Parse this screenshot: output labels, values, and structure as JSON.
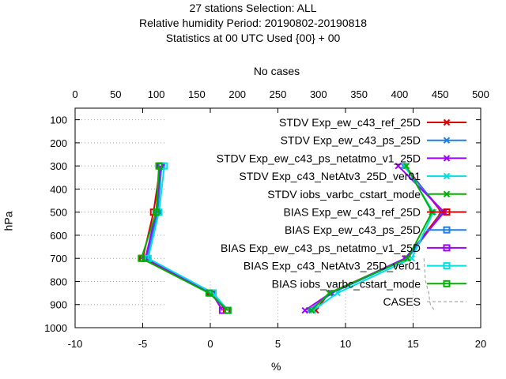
{
  "title_lines": [
    "27 stations Selection: ALL",
    "Relative humidity  Period: 20190802-20190818",
    "Statistics at 00 UTC  Used {00} + 00"
  ],
  "chart_data": {
    "type": "line",
    "title": "27 stations Selection: ALL / Relative humidity  Period: 20190802-20190818 / Statistics at 00 UTC  Used {00} + 00",
    "xlabel": "%",
    "ylabel": "hPa",
    "x2label": "No cases",
    "xlim": [
      -10,
      20
    ],
    "ylim": [
      1000,
      50
    ],
    "x2lim": [
      0,
      500
    ],
    "xticks": [
      "-10",
      "-5",
      "0",
      "5",
      "10",
      "15",
      "20"
    ],
    "yticks": [
      "100",
      "200",
      "300",
      "400",
      "500",
      "600",
      "700",
      "800",
      "900",
      "1000"
    ],
    "x2ticks": [
      "0",
      "50",
      "100",
      "150",
      "200",
      "250",
      "300",
      "350",
      "400",
      "450",
      "500"
    ],
    "grid": true,
    "legend_position": "top-right",
    "series": [
      {
        "name": "STDV Exp_ew_c43_ref_25D",
        "color": "#dd0000",
        "marker": "x",
        "x": [
          14.4,
          17.1,
          14.5,
          8.8,
          7.8
        ],
        "y": [
          300,
          500,
          700,
          850,
          925
        ]
      },
      {
        "name": "STDV Exp_ew_c43_ps_25D",
        "color": "#1e7fe6",
        "marker": "x",
        "x": [
          14.3,
          17.2,
          14.6,
          9.0,
          7.3
        ],
        "y": [
          300,
          500,
          700,
          850,
          925
        ]
      },
      {
        "name": "STDV Exp_ew_c43_ps_netatmo_v1_25D",
        "color": "#a000ff",
        "marker": "x",
        "x": [
          13.9,
          17.3,
          14.4,
          8.9,
          7.0
        ],
        "y": [
          300,
          500,
          700,
          850,
          925
        ]
      },
      {
        "name": "STDV Exp_c43_NetAtv3_25D_ver01",
        "color": "#00e0e0",
        "marker": "x",
        "x": [
          14.4,
          16.5,
          14.9,
          9.4,
          7.6
        ],
        "y": [
          300,
          500,
          700,
          850,
          925
        ]
      },
      {
        "name": "STDV iobs_varbc_cstart_mode",
        "color": "#00b000",
        "marker": "x",
        "x": [
          14.5,
          16.4,
          14.6,
          8.8,
          7.5
        ],
        "y": [
          300,
          500,
          700,
          850,
          925
        ]
      },
      {
        "name": "BIAS Exp_ew_c43_ref_25D",
        "color": "#dd0000",
        "marker": "square",
        "x": [
          -3.7,
          -4.2,
          -5.0,
          0.0,
          1.2
        ],
        "y": [
          300,
          500,
          700,
          850,
          925
        ]
      },
      {
        "name": "BIAS Exp_ew_c43_ps_25D",
        "color": "#1e7fe6",
        "marker": "square",
        "x": [
          -3.6,
          -3.9,
          -4.7,
          0.2,
          1.3
        ],
        "y": [
          300,
          500,
          700,
          850,
          925
        ]
      },
      {
        "name": "BIAS Exp_ew_c43_ps_netatmo_v1_25D",
        "color": "#a000ff",
        "marker": "square",
        "x": [
          -3.7,
          -4.0,
          -4.8,
          0.1,
          0.9
        ],
        "y": [
          300,
          500,
          700,
          850,
          925
        ]
      },
      {
        "name": "BIAS Exp_c43_NetAtv3_25D_ver01",
        "color": "#00e0e0",
        "marker": "square",
        "x": [
          -3.4,
          -3.8,
          -4.6,
          0.2,
          1.3
        ],
        "y": [
          300,
          500,
          700,
          850,
          925
        ]
      },
      {
        "name": "BIAS iobs_varbc_cstart_mode",
        "color": "#00b000",
        "marker": "square",
        "x": [
          -3.8,
          -4.0,
          -5.1,
          -0.1,
          1.3
        ],
        "y": [
          300,
          500,
          700,
          850,
          925
        ]
      },
      {
        "name": "CASES",
        "color": "#999999",
        "marker": "none",
        "dashed": true,
        "axis": "x2",
        "x": [
          430,
          432,
          436,
          437,
          438,
          443
        ],
        "y": [
          700,
          800,
          850,
          880,
          900,
          925
        ]
      }
    ]
  }
}
